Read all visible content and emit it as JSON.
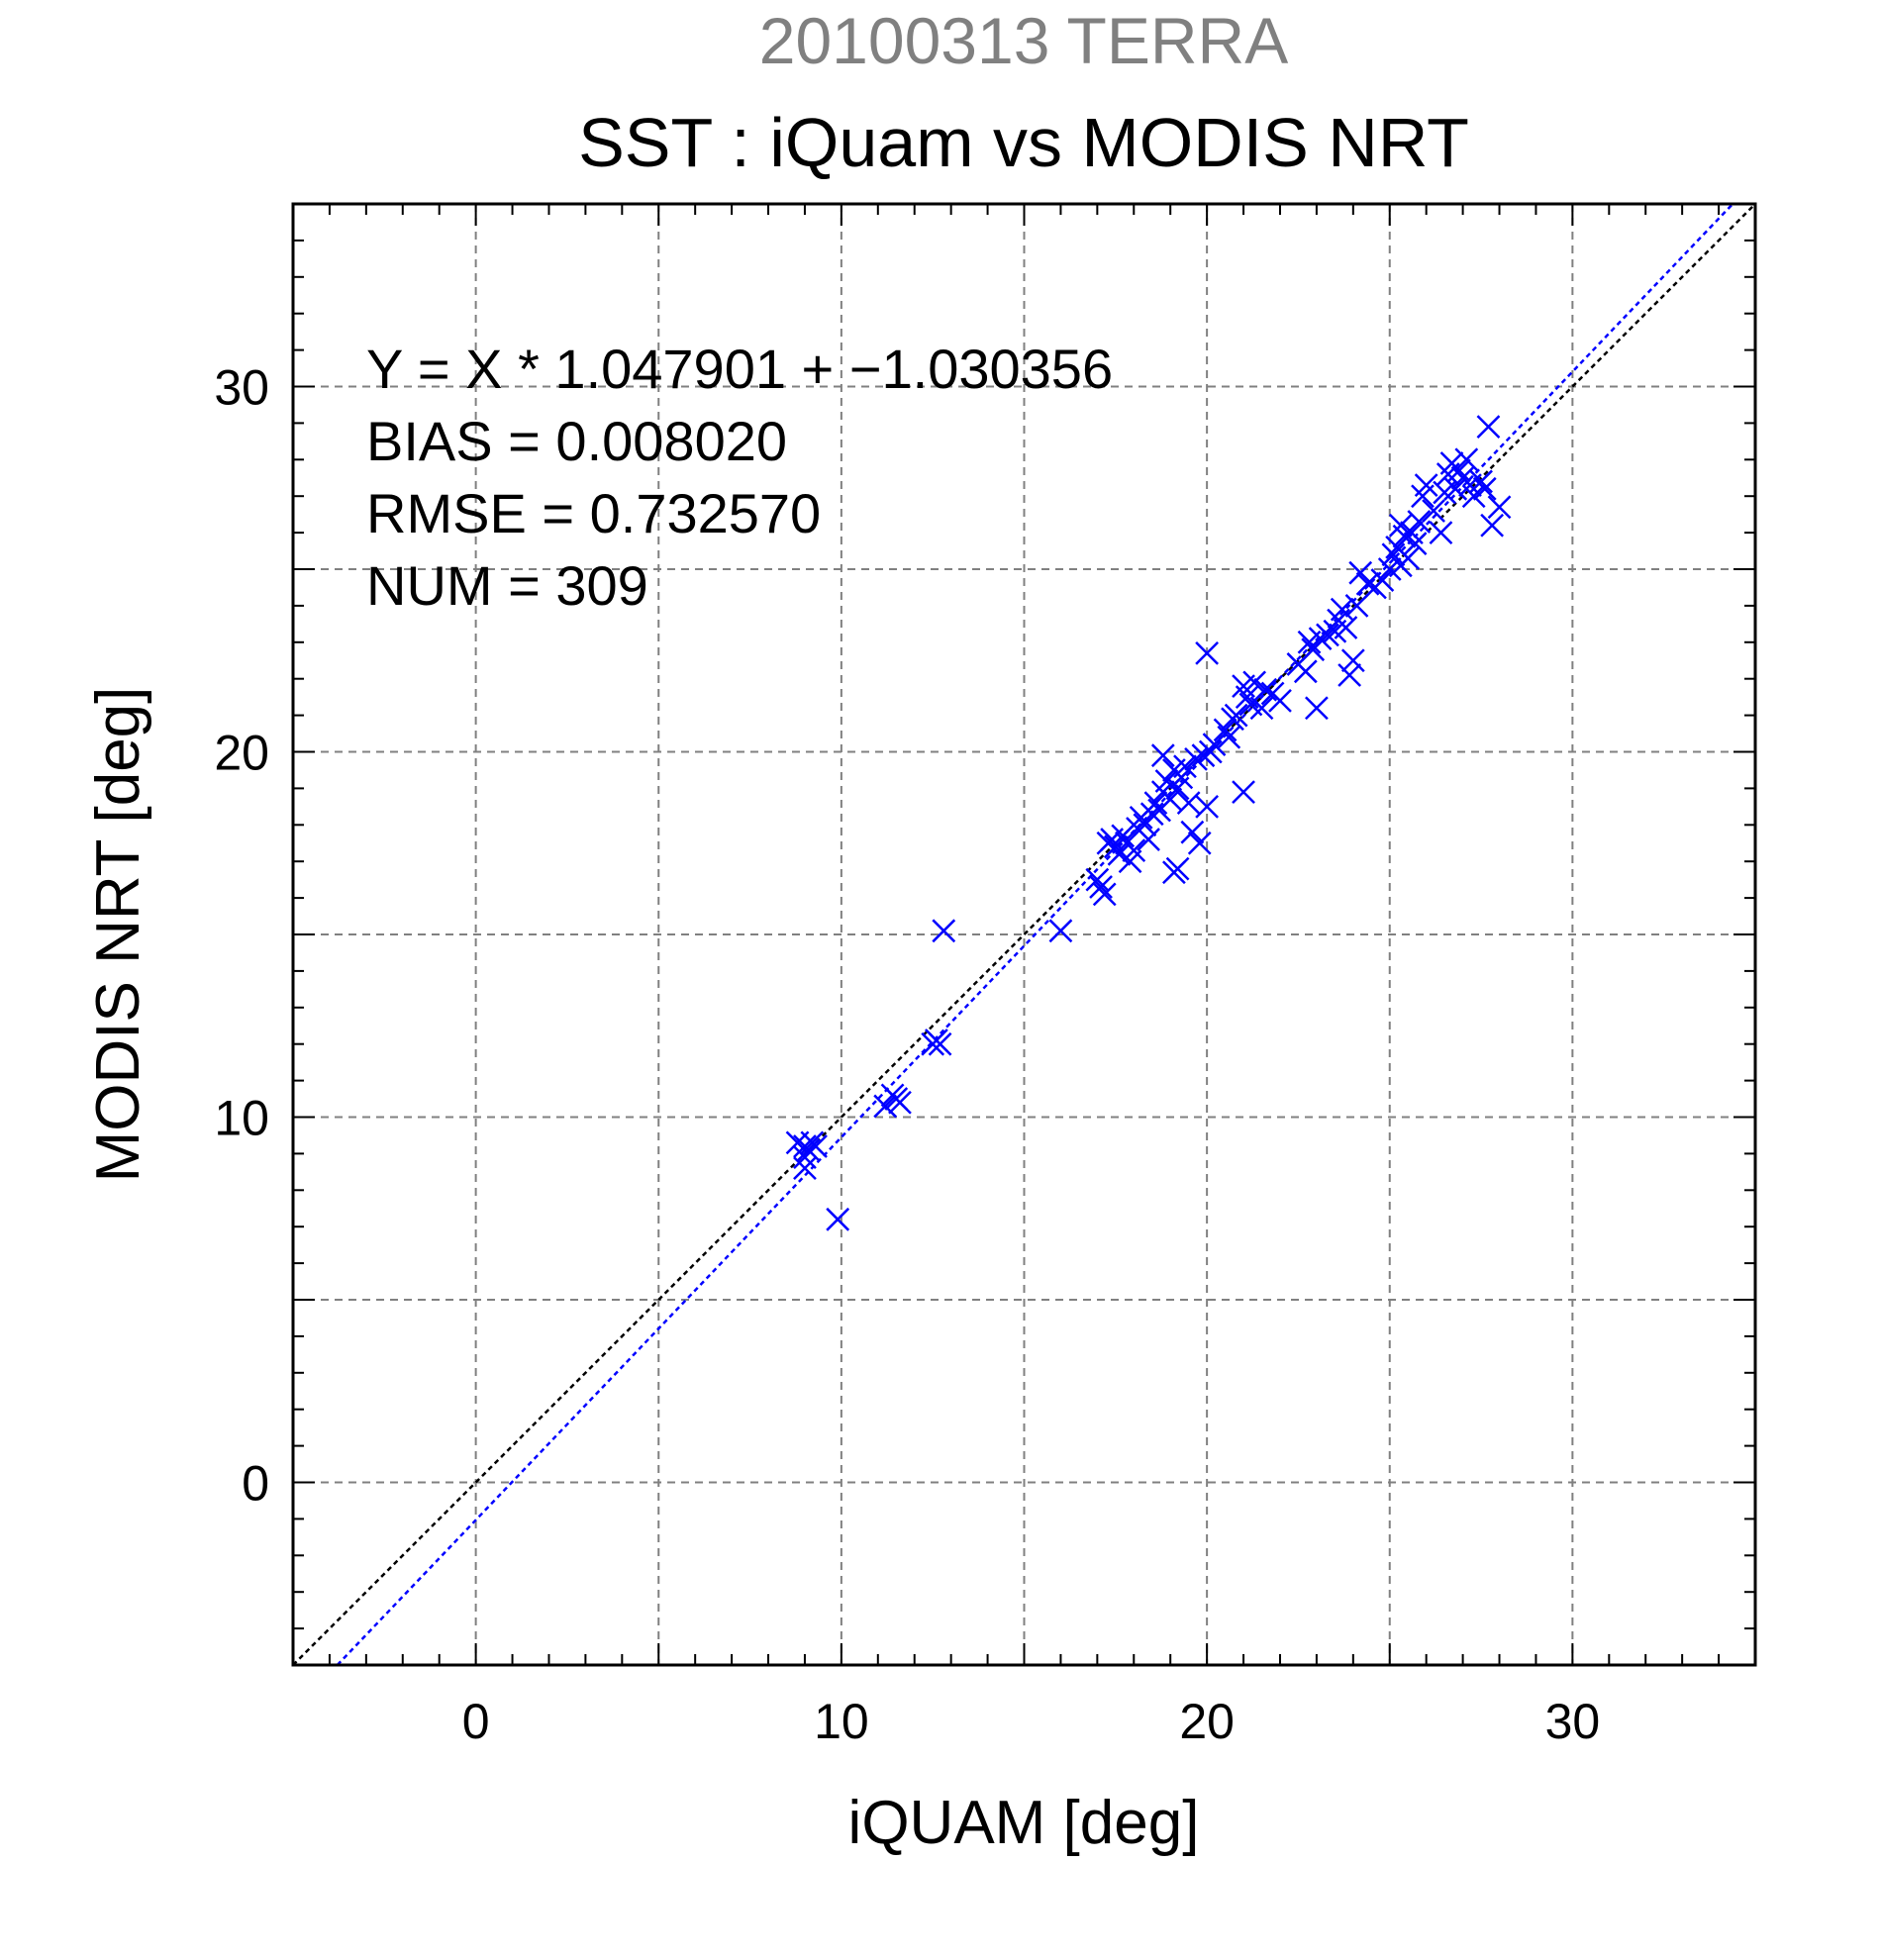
{
  "chart_data": {
    "type": "scatter",
    "supertitle": "20100313 TERRA",
    "title": "SST : iQuam vs MODIS NRT",
    "xlabel": "iQUAM [deg]",
    "ylabel": "MODIS NRT [deg]",
    "xlim": [
      -5,
      35
    ],
    "ylim": [
      -5,
      35
    ],
    "xticks": [
      0,
      10,
      20,
      30
    ],
    "yticks": [
      0,
      10,
      20,
      30
    ],
    "xtick_labels": [
      "0",
      "10",
      "20",
      "30"
    ],
    "ytick_labels": [
      "0",
      "10",
      "20",
      "30"
    ],
    "grid": true,
    "marker": "x",
    "marker_color": "#0000ff",
    "stats": {
      "equation": "Y = X * 1.047901 + −1.030356",
      "bias": "BIAS = 0.008020",
      "rmse": "RMSE = 0.732570",
      "num": "NUM = 309"
    },
    "lines": [
      {
        "style": "dotted",
        "color": "#000000",
        "slope": 1.0,
        "intercept": 0.0
      },
      {
        "style": "dotted",
        "color": "#0000ff",
        "slope": 1.047901,
        "intercept": -1.030356
      }
    ],
    "points": [
      [
        8.8,
        9.3
      ],
      [
        9.0,
        9.2
      ],
      [
        9.1,
        9.1
      ],
      [
        9.2,
        9.3
      ],
      [
        9.3,
        9.2
      ],
      [
        9.0,
        8.9
      ],
      [
        9.0,
        8.6
      ],
      [
        9.9,
        7.2
      ],
      [
        11.2,
        10.3
      ],
      [
        11.4,
        10.6
      ],
      [
        11.5,
        10.5
      ],
      [
        11.6,
        10.4
      ],
      [
        12.5,
        12.0
      ],
      [
        12.6,
        12.1
      ],
      [
        12.7,
        12.0
      ],
      [
        12.8,
        15.1
      ],
      [
        16.0,
        15.1
      ],
      [
        17.0,
        16.5
      ],
      [
        17.1,
        16.3
      ],
      [
        17.2,
        16.1
      ],
      [
        17.3,
        17.5
      ],
      [
        17.4,
        17.6
      ],
      [
        17.5,
        17.4
      ],
      [
        17.6,
        17.2
      ],
      [
        17.7,
        17.7
      ],
      [
        17.8,
        17.5
      ],
      [
        17.9,
        17.0
      ],
      [
        18.0,
        17.3
      ],
      [
        18.1,
        17.9
      ],
      [
        18.2,
        18.2
      ],
      [
        18.3,
        18.0
      ],
      [
        18.4,
        17.6
      ],
      [
        18.5,
        18.3
      ],
      [
        18.6,
        18.6
      ],
      [
        18.7,
        18.4
      ],
      [
        18.8,
        18.9
      ],
      [
        18.9,
        19.2
      ],
      [
        18.8,
        19.9
      ],
      [
        19.0,
        18.7
      ],
      [
        19.1,
        19.5
      ],
      [
        19.2,
        19.0
      ],
      [
        19.3,
        19.3
      ],
      [
        19.4,
        19.6
      ],
      [
        19.5,
        18.6
      ],
      [
        19.6,
        17.8
      ],
      [
        19.7,
        19.8
      ],
      [
        19.8,
        17.5
      ],
      [
        19.9,
        19.9
      ],
      [
        20.0,
        18.5
      ],
      [
        19.1,
        16.7
      ],
      [
        19.2,
        16.8
      ],
      [
        20.1,
        20.0
      ],
      [
        20.2,
        20.2
      ],
      [
        20.0,
        22.7
      ],
      [
        20.5,
        20.6
      ],
      [
        20.6,
        20.4
      ],
      [
        20.7,
        20.9
      ],
      [
        20.8,
        21.0
      ],
      [
        21.0,
        21.8
      ],
      [
        21.1,
        21.5
      ],
      [
        21.2,
        21.3
      ],
      [
        21.0,
        18.9
      ],
      [
        21.3,
        21.9
      ],
      [
        21.5,
        21.2
      ],
      [
        21.6,
        21.7
      ],
      [
        21.8,
        21.6
      ],
      [
        22.0,
        21.4
      ],
      [
        22.5,
        22.4
      ],
      [
        22.7,
        22.2
      ],
      [
        22.8,
        23.0
      ],
      [
        22.9,
        22.8
      ],
      [
        23.0,
        21.2
      ],
      [
        23.1,
        23.1
      ],
      [
        23.3,
        23.2
      ],
      [
        23.5,
        23.3
      ],
      [
        23.6,
        23.6
      ],
      [
        23.7,
        23.9
      ],
      [
        23.8,
        23.4
      ],
      [
        23.9,
        22.1
      ],
      [
        24.0,
        22.5
      ],
      [
        24.1,
        24.0
      ],
      [
        24.2,
        24.9
      ],
      [
        24.4,
        24.6
      ],
      [
        24.6,
        24.5
      ],
      [
        24.8,
        24.7
      ],
      [
        25.0,
        25.0
      ],
      [
        25.1,
        25.4
      ],
      [
        25.2,
        25.6
      ],
      [
        25.3,
        26.2
      ],
      [
        25.4,
        25.9
      ],
      [
        25.5,
        25.3
      ],
      [
        25.6,
        26.0
      ],
      [
        25.7,
        25.7
      ],
      [
        25.8,
        26.3
      ],
      [
        25.3,
        25.1
      ],
      [
        25.9,
        27.0
      ],
      [
        26.0,
        27.3
      ],
      [
        26.2,
        26.6
      ],
      [
        26.4,
        26.0
      ],
      [
        26.5,
        27.1
      ],
      [
        26.6,
        27.6
      ],
      [
        26.7,
        27.9
      ],
      [
        26.8,
        27.2
      ],
      [
        26.9,
        27.7
      ],
      [
        27.0,
        27.5
      ],
      [
        27.1,
        28.0
      ],
      [
        27.2,
        27.3
      ],
      [
        27.3,
        27.0
      ],
      [
        27.5,
        27.4
      ],
      [
        27.6,
        27.2
      ],
      [
        27.7,
        28.9
      ],
      [
        27.8,
        26.2
      ],
      [
        28.0,
        26.7
      ]
    ]
  }
}
